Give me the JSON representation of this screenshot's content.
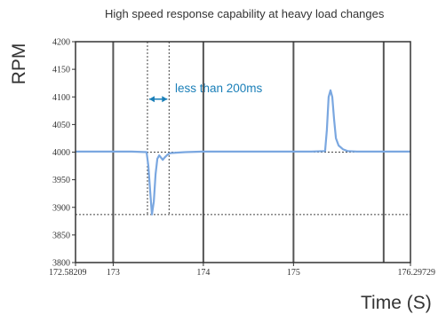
{
  "chart_data": {
    "type": "line",
    "title": "High speed response capability at heavy load changes",
    "xlabel": "Time (S)",
    "ylabel": "RPM",
    "xlim": [
      172.58209,
      176.29729
    ],
    "ylim": [
      3800,
      4200
    ],
    "x_ticks": [
      {
        "value": 172.58209,
        "label": "172.58209"
      },
      {
        "value": 173,
        "label": "173"
      },
      {
        "value": 174,
        "label": "174"
      },
      {
        "value": 175,
        "label": "175"
      },
      {
        "value": 176.29729,
        "label": "176.29729"
      }
    ],
    "y_ticks": [
      3800,
      3850,
      3900,
      3950,
      4000,
      4050,
      4100,
      4150,
      4200
    ],
    "vertical_gridlines_at": [
      173,
      174,
      175,
      176
    ],
    "reference_lines": {
      "horizontal": [
        4000,
        3887
      ],
      "vertical": [
        173.38,
        173.62
      ]
    },
    "annotation": {
      "text": "less than 200ms",
      "color": "#1a7fb8",
      "span_x": [
        173.38,
        173.62
      ],
      "at_y": 4096
    },
    "series": [
      {
        "color": "#7aa7e0",
        "x": [
          172.58209,
          172.9,
          173.2,
          173.37,
          173.39,
          173.41,
          173.43,
          173.45,
          173.47,
          173.49,
          173.51,
          173.53,
          173.55,
          173.57,
          173.6,
          173.63,
          173.7,
          173.8,
          174.0,
          174.5,
          175.0,
          175.2,
          175.35,
          175.37,
          175.39,
          175.41,
          175.43,
          175.45,
          175.47,
          175.5,
          175.55,
          175.6,
          175.7,
          176.0,
          176.29729
        ],
        "y": [
          4001,
          4001,
          4001,
          4000,
          3975,
          3930,
          3887,
          3910,
          3960,
          3988,
          3994,
          3990,
          3986,
          3990,
          3995,
          3998,
          3999,
          4000,
          4001,
          4001,
          4001,
          4001,
          4002,
          4040,
          4100,
          4112,
          4100,
          4060,
          4025,
          4012,
          4005,
          4002,
          4001,
          4001,
          4001
        ]
      }
    ]
  }
}
